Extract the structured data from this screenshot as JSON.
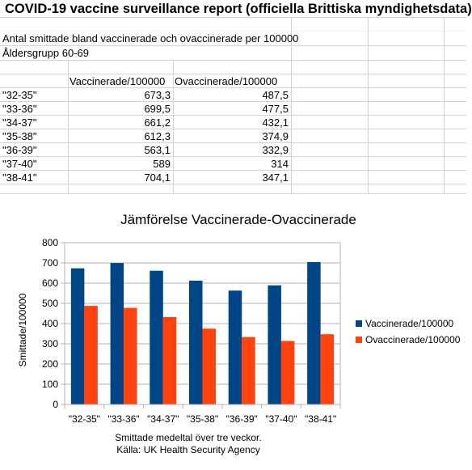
{
  "sheet": {
    "title": "COVID-19 vaccine surveillance report (officiella Brittiska myndighetsdata)",
    "line1": "Antal smittade bland vaccinerade och ovaccinerade per 100000",
    "line2": "Åldersgrupp 60-69",
    "col_vacc": "Vaccinerade/100000",
    "col_unvacc": "Ovaccinerade/100000",
    "rows": [
      {
        "week": "\"32-35\"",
        "vacc": "673,3",
        "unvacc": "487,5"
      },
      {
        "week": "\"33-36\"",
        "vacc": "699,5",
        "unvacc": "477,5"
      },
      {
        "week": "\"34-37\"",
        "vacc": "661,2",
        "unvacc": "432,1"
      },
      {
        "week": "\"35-38\"",
        "vacc": "612,3",
        "unvacc": "374,9"
      },
      {
        "week": "\"36-39\"",
        "vacc": "563,1",
        "unvacc": "332,9"
      },
      {
        "week": "\"37-40\"",
        "vacc": "589",
        "unvacc": "314"
      },
      {
        "week": "\"38-41\"",
        "vacc": "704,1",
        "unvacc": "347,1"
      }
    ]
  },
  "chart_data": {
    "type": "bar",
    "title": "Jämförelse Vaccinerade-Ovaccinerade",
    "xlabel": "",
    "ylabel": "Smittade/100000",
    "ylim": [
      0,
      800
    ],
    "yticks": [
      0,
      100,
      200,
      300,
      400,
      500,
      600,
      700,
      800
    ],
    "grid": true,
    "legend_position": "right",
    "categories": [
      "\"32-35\"",
      "\"33-36\"",
      "\"34-37\"",
      "\"35-38\"",
      "\"36-39\"",
      "\"37-40\"",
      "\"38-41\""
    ],
    "series": [
      {
        "name": "Vaccinerade/100000",
        "color": "#004586",
        "values": [
          673.3,
          699.5,
          661.2,
          612.3,
          563.1,
          589,
          704.1
        ]
      },
      {
        "name": "Ovaccinerade/100000",
        "color": "#ff420e",
        "values": [
          487.5,
          477.5,
          432.1,
          374.9,
          332.9,
          314,
          347.1
        ]
      }
    ],
    "caption_line1": "Smittade medeltal över tre veckor.",
    "caption_line2": "Källa: UK Health Security Agency"
  }
}
